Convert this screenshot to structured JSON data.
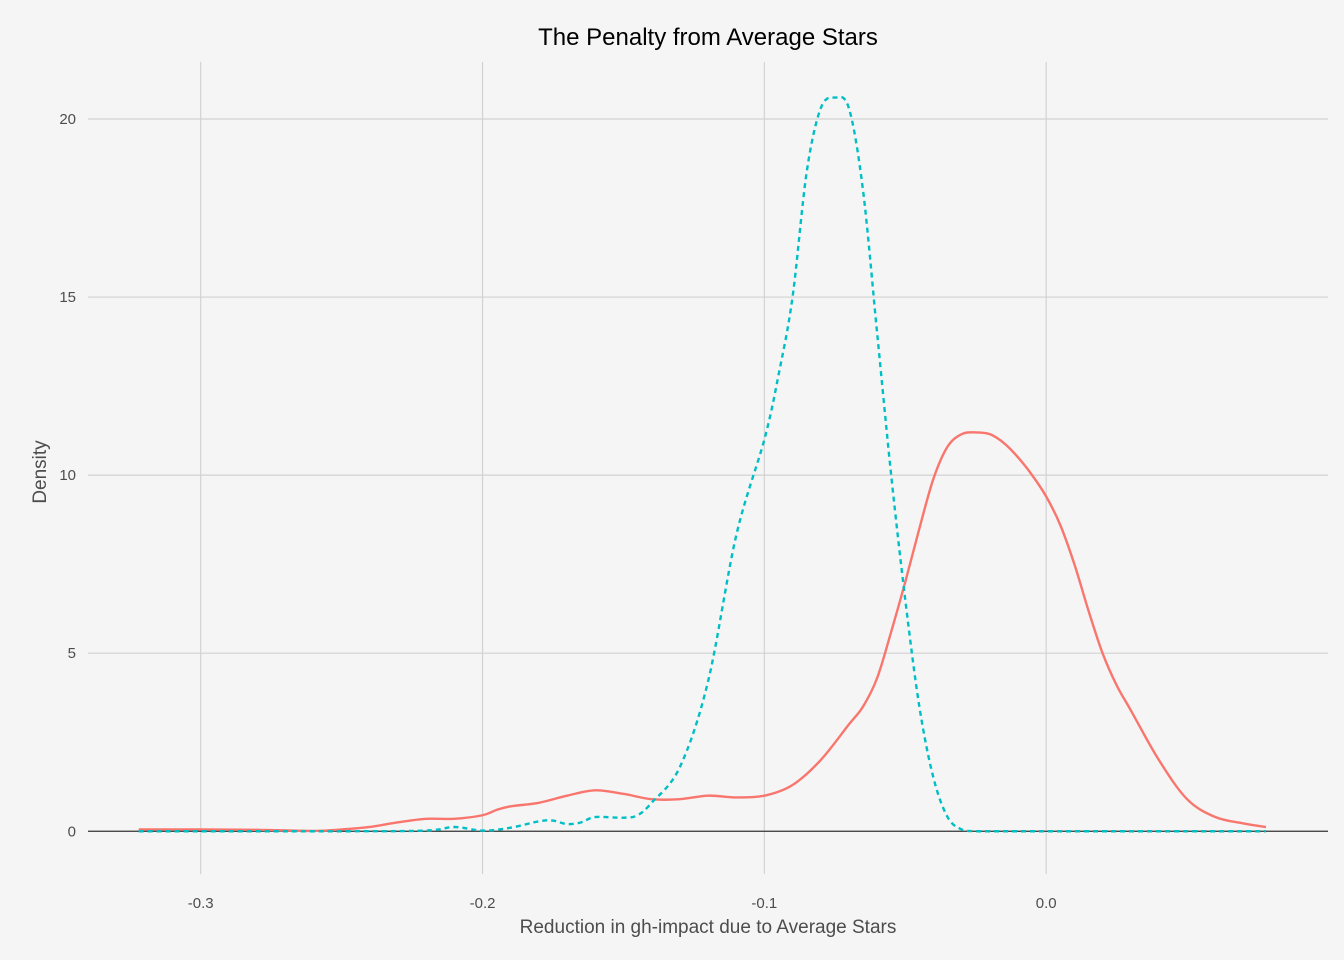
{
  "chart_data": {
    "type": "line",
    "title": "The Penalty from Average Stars",
    "xlabel": "Reduction in gh-impact due to Average Stars",
    "ylabel": "Density",
    "xlim": [
      -0.34,
      0.1
    ],
    "ylim": [
      -1.2,
      21.6
    ],
    "xticks": [
      -0.3,
      -0.2,
      -0.1,
      0.0
    ],
    "xtick_labels": [
      "-0.3",
      "-0.2",
      "-0.1",
      "0.0"
    ],
    "yticks": [
      0,
      5,
      10,
      15,
      20
    ],
    "ytick_labels": [
      "0",
      "5",
      "10",
      "15",
      "20"
    ],
    "grid": true,
    "legend": "none",
    "series": [
      {
        "color": "#F8766D",
        "dash": "solid",
        "x": [
          -0.322,
          -0.3,
          -0.28,
          -0.26,
          -0.25,
          -0.24,
          -0.23,
          -0.22,
          -0.21,
          -0.2,
          -0.195,
          -0.19,
          -0.18,
          -0.17,
          -0.16,
          -0.15,
          -0.14,
          -0.13,
          -0.12,
          -0.11,
          -0.1,
          -0.09,
          -0.08,
          -0.07,
          -0.065,
          -0.06,
          -0.055,
          -0.05,
          -0.045,
          -0.04,
          -0.035,
          -0.03,
          -0.025,
          -0.02,
          -0.015,
          -0.01,
          -0.005,
          0.0,
          0.005,
          0.01,
          0.015,
          0.02,
          0.025,
          0.03,
          0.04,
          0.05,
          0.06,
          0.07,
          0.078
        ],
        "y": [
          0.05,
          0.05,
          0.04,
          0.01,
          0.05,
          0.12,
          0.25,
          0.35,
          0.35,
          0.45,
          0.6,
          0.7,
          0.8,
          1.0,
          1.15,
          1.05,
          0.9,
          0.9,
          1.0,
          0.95,
          1.0,
          1.3,
          2.0,
          3.0,
          3.5,
          4.3,
          5.6,
          7.0,
          8.5,
          9.9,
          10.8,
          11.15,
          11.2,
          11.15,
          10.9,
          10.5,
          10.0,
          9.4,
          8.6,
          7.5,
          6.2,
          5.0,
          4.1,
          3.4,
          2.0,
          0.9,
          0.4,
          0.22,
          0.12
        ]
      },
      {
        "color": "#00BFC4",
        "dash": "dashed",
        "x": [
          -0.322,
          -0.25,
          -0.22,
          -0.21,
          -0.2,
          -0.19,
          -0.18,
          -0.175,
          -0.17,
          -0.165,
          -0.16,
          -0.15,
          -0.145,
          -0.14,
          -0.13,
          -0.12,
          -0.11,
          -0.1,
          -0.095,
          -0.09,
          -0.085,
          -0.08,
          -0.075,
          -0.07,
          -0.065,
          -0.06,
          -0.055,
          -0.05,
          -0.045,
          -0.04,
          -0.035,
          -0.03,
          -0.025,
          -0.02,
          0.0,
          0.078
        ],
        "y": [
          0,
          0,
          0.02,
          0.12,
          0.02,
          0.1,
          0.28,
          0.3,
          0.2,
          0.25,
          0.4,
          0.38,
          0.45,
          0.8,
          1.8,
          4.2,
          8.3,
          11.0,
          12.8,
          15.0,
          18.5,
          20.3,
          20.6,
          20.3,
          18.0,
          14.0,
          10.0,
          6.5,
          3.5,
          1.5,
          0.4,
          0.05,
          0.0,
          0.0,
          0.0,
          0.0
        ]
      }
    ]
  }
}
